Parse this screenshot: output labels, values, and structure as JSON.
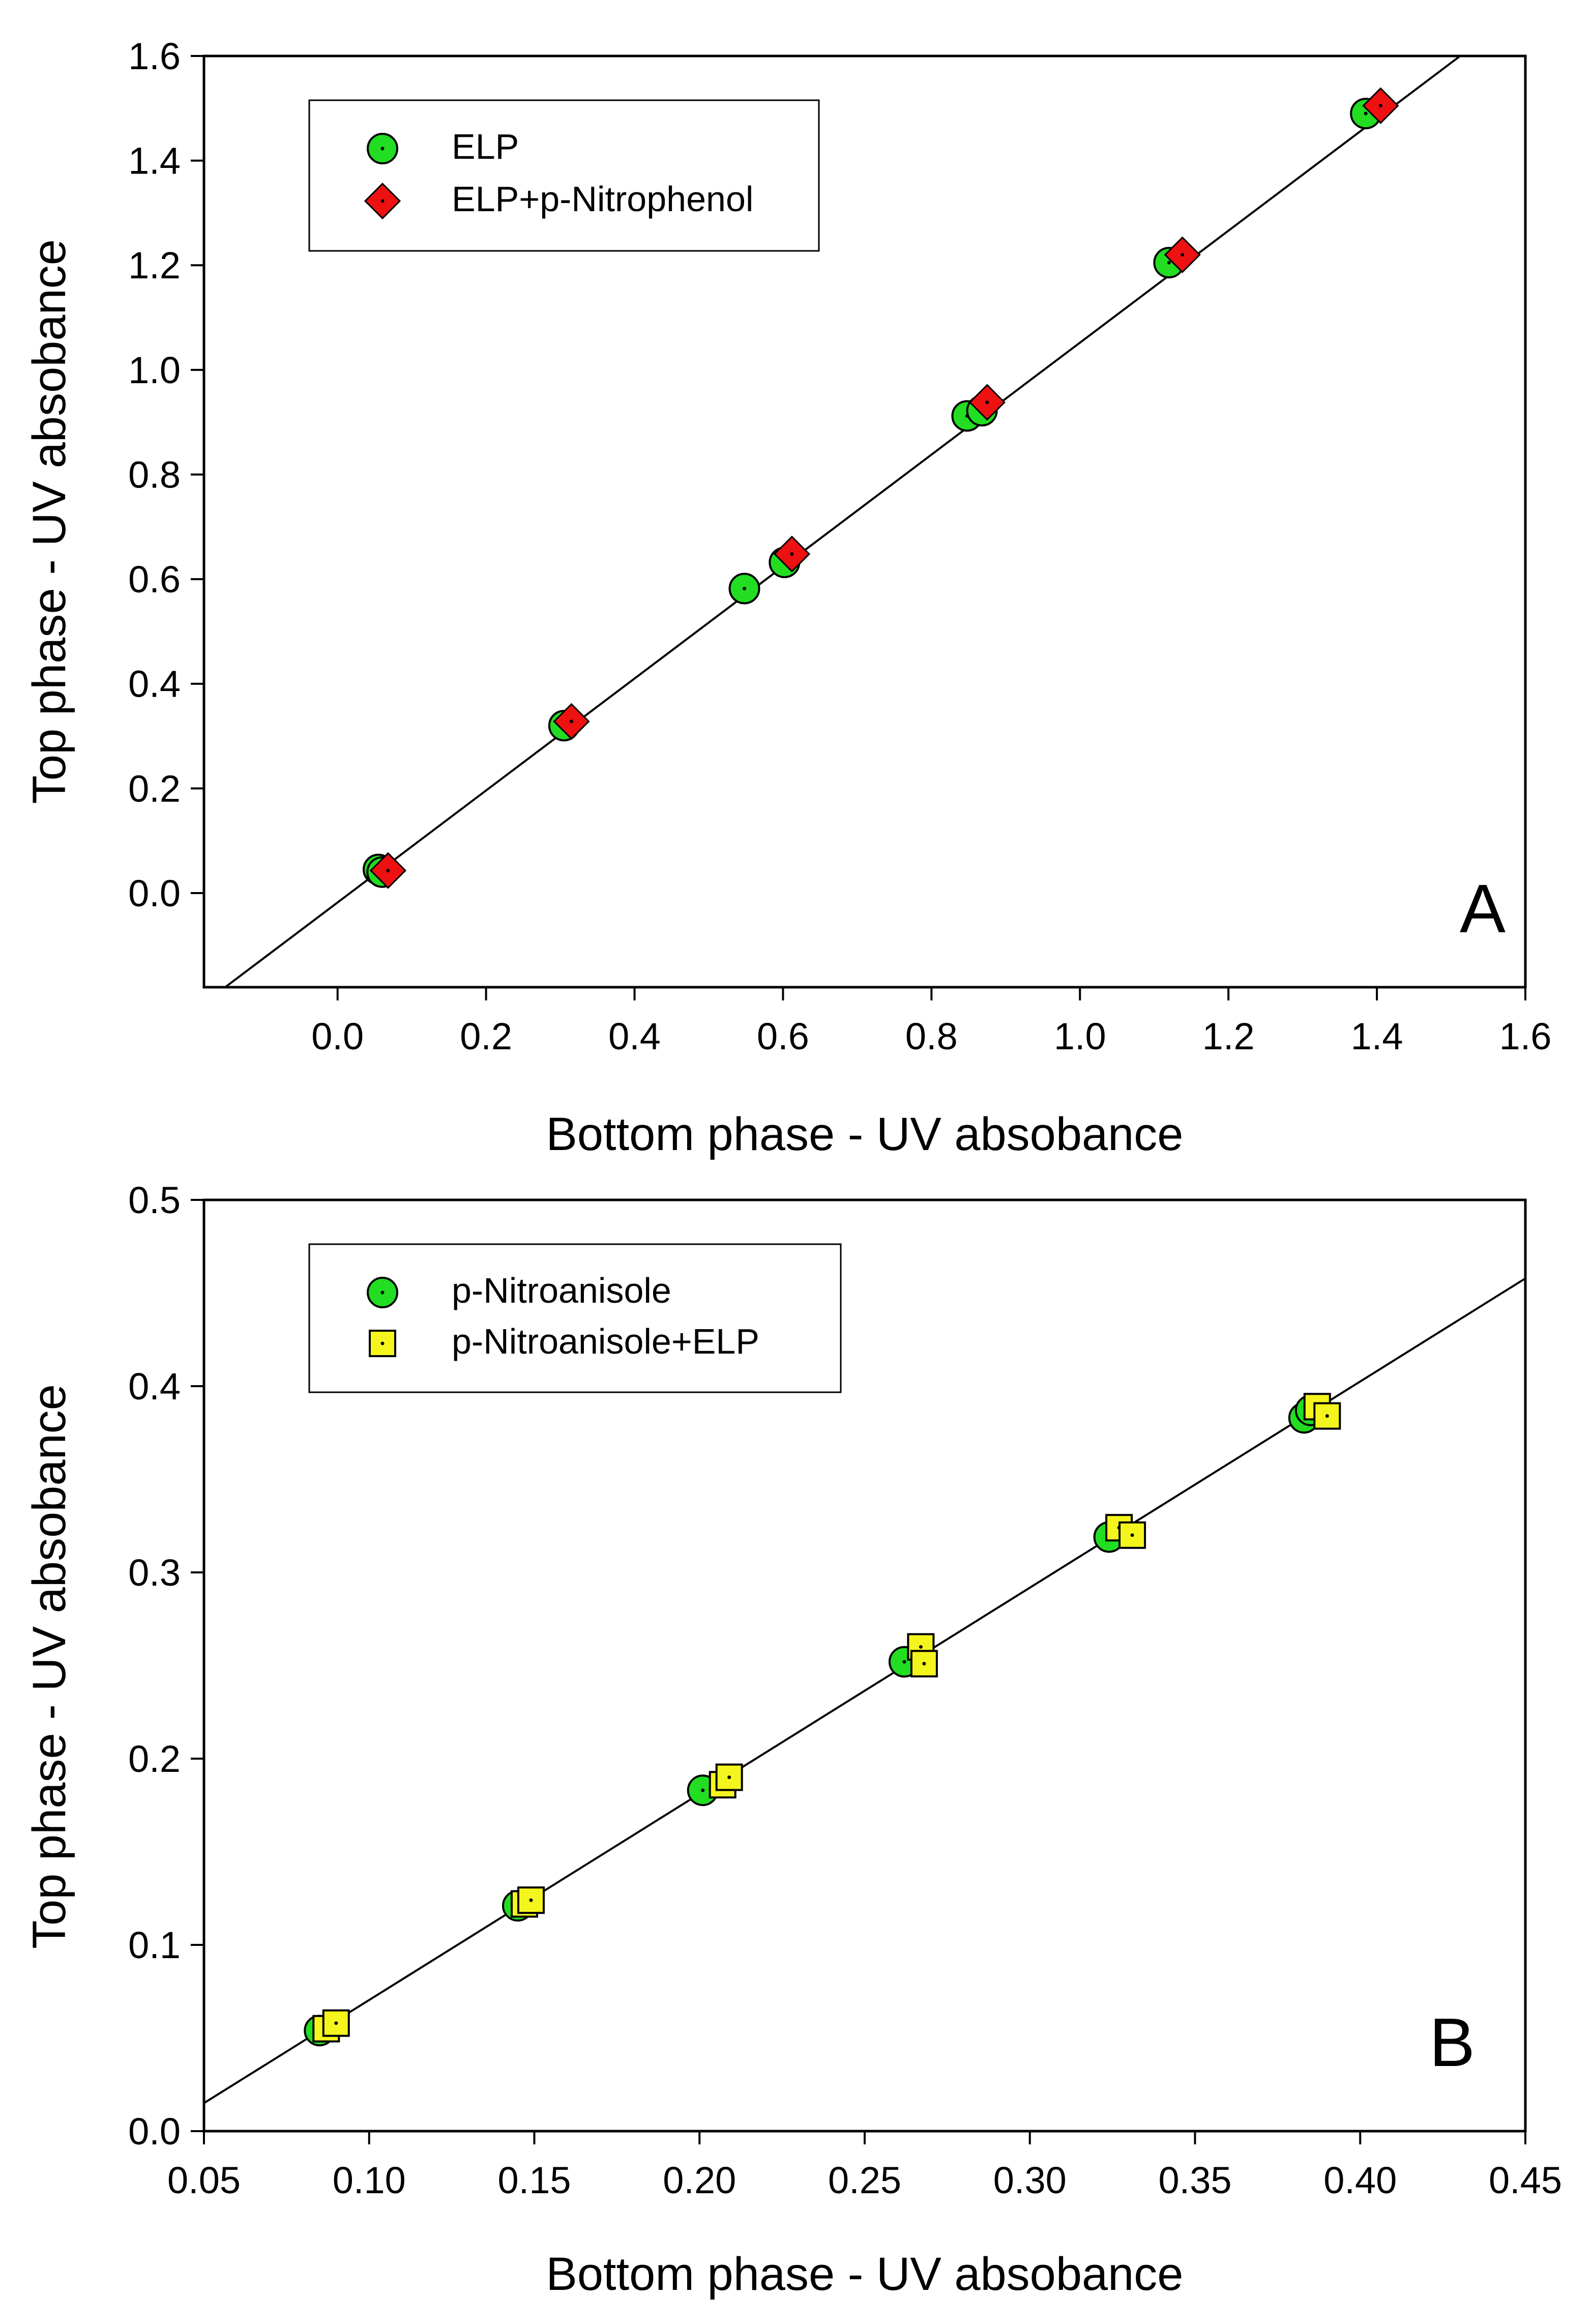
{
  "chart_data": [
    {
      "type": "scatter",
      "panel_label": "A",
      "xlabel": "Bottom phase - UV absobance",
      "ylabel": "Top phase - UV absobance",
      "xlim": [
        -0.18,
        1.6
      ],
      "ylim": [
        -0.18,
        1.6
      ],
      "xticks": [
        0.0,
        0.2,
        0.4,
        0.6,
        0.8,
        1.0,
        1.2,
        1.4,
        1.6
      ],
      "xtick_labels": [
        "0.0",
        "0.2",
        "0.4",
        "0.6",
        "0.8",
        "1.0",
        "1.2",
        "1.4",
        "1.6"
      ],
      "yticks": [
        0.0,
        0.2,
        0.4,
        0.6,
        0.8,
        1.0,
        1.2,
        1.4,
        1.6
      ],
      "ytick_labels": [
        "0.0",
        "0.2",
        "0.4",
        "0.6",
        "0.8",
        "1.0",
        "1.2",
        "1.4",
        "1.6"
      ],
      "legend_position": "top-left",
      "fit_line": {
        "slope": 1.07,
        "intercept": -0.018
      },
      "series": [
        {
          "name": "ELP",
          "marker": "circle",
          "color": "#22dd22",
          "x": [
            0.055,
            0.06,
            0.305,
            0.548,
            0.602,
            0.848,
            0.868,
            1.12,
            1.385
          ],
          "y": [
            0.045,
            0.04,
            0.32,
            0.582,
            0.632,
            0.912,
            0.922,
            1.205,
            1.49
          ]
        },
        {
          "name": "ELP+p-Nitrophenol",
          "marker": "diamond",
          "color": "#ee1111",
          "x": [
            0.068,
            0.315,
            0.612,
            0.875,
            1.138,
            1.405
          ],
          "y": [
            0.043,
            0.328,
            0.648,
            0.938,
            1.22,
            1.505
          ]
        }
      ]
    },
    {
      "type": "scatter",
      "panel_label": "B",
      "xlabel": "Bottom phase - UV absobance",
      "ylabel": "Top phase - UV absobance",
      "xlim": [
        0.05,
        0.45
      ],
      "ylim": [
        0.0,
        0.5
      ],
      "xticks": [
        0.05,
        0.1,
        0.15,
        0.2,
        0.25,
        0.3,
        0.35,
        0.4,
        0.45
      ],
      "xtick_labels": [
        "0.05",
        "0.10",
        "0.15",
        "0.20",
        "0.25",
        "0.30",
        "0.35",
        "0.40",
        "0.45"
      ],
      "yticks": [
        0.0,
        0.1,
        0.2,
        0.3,
        0.4,
        0.5
      ],
      "ytick_labels": [
        "0.0",
        "0.1",
        "0.2",
        "0.3",
        "0.4",
        "0.5"
      ],
      "legend_position": "top-left",
      "fit_line": {
        "slope": 1.107,
        "intercept": -0.0403
      },
      "series": [
        {
          "name": "p-Nitroanisole",
          "marker": "circle",
          "color": "#22dd22",
          "x": [
            0.085,
            0.145,
            0.201,
            0.262,
            0.324,
            0.383,
            0.385
          ],
          "y": [
            0.054,
            0.121,
            0.183,
            0.252,
            0.319,
            0.383,
            0.387
          ]
        },
        {
          "name": "p-Nitroanisole+ELP",
          "marker": "square",
          "color": "#f5f51e",
          "x": [
            0.087,
            0.09,
            0.147,
            0.149,
            0.207,
            0.209,
            0.267,
            0.268,
            0.327,
            0.331,
            0.387,
            0.39
          ],
          "y": [
            0.055,
            0.058,
            0.122,
            0.124,
            0.186,
            0.19,
            0.26,
            0.251,
            0.324,
            0.32,
            0.389,
            0.384
          ]
        }
      ]
    }
  ]
}
